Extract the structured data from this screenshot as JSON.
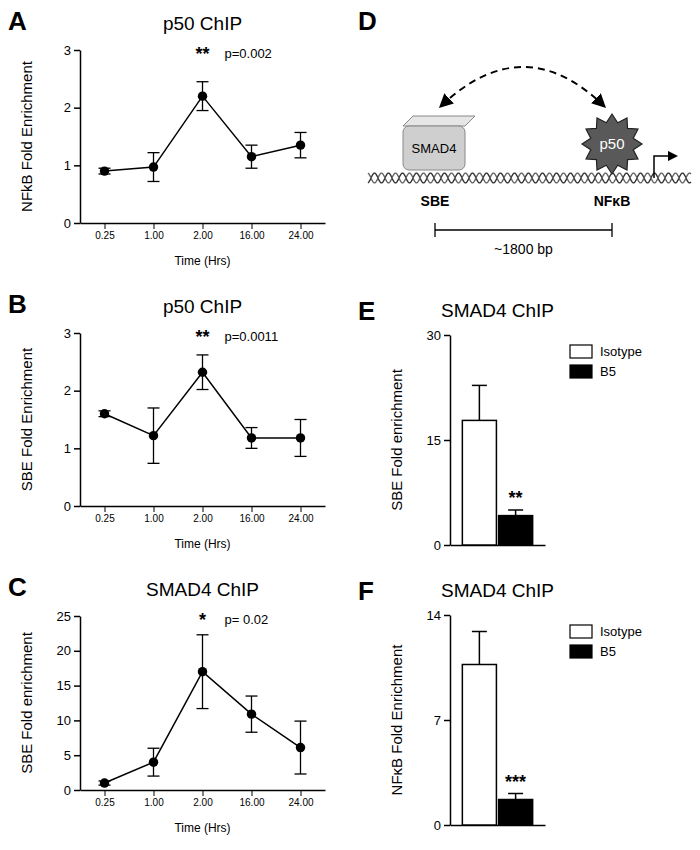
{
  "chart_data": [
    {
      "panel": "A",
      "type": "line",
      "title": "p50 ChIP",
      "y_label": "NFkB Fold Enrichment",
      "x_label": "Time (Hrs)",
      "categories": [
        "0.25",
        "1.00",
        "2.00",
        "16.00",
        "24.00"
      ],
      "values": [
        0.9,
        0.97,
        2.2,
        1.15,
        1.35
      ],
      "errors": [
        0.05,
        0.25,
        0.25,
        0.2,
        0.22
      ],
      "color": "#000000",
      "marker": "circle",
      "ylim": [
        0,
        3
      ],
      "yticks": [
        0,
        1,
        2,
        3
      ],
      "annotations": [
        "**",
        "p=0.002"
      ]
    },
    {
      "panel": "B",
      "type": "line",
      "title": "p50 ChIP",
      "y_label": "SBE Fold Enrichment",
      "x_label": "Time (Hrs)",
      "categories": [
        "0.25",
        "1.00",
        "2.00",
        "16.00",
        "24.00"
      ],
      "values": [
        1.6,
        1.22,
        2.32,
        1.18,
        1.18
      ],
      "errors": [
        0.05,
        0.48,
        0.3,
        0.18,
        0.32
      ],
      "color": "#000000",
      "marker": "circle",
      "ylim": [
        0,
        3
      ],
      "yticks": [
        0,
        1,
        2,
        3
      ],
      "annotations": [
        "**",
        "p=0.0011"
      ]
    },
    {
      "panel": "C",
      "type": "line",
      "title": "SMAD4 ChIP",
      "y_label": "SBE Fold enrichment",
      "x_label": "Time (Hrs)",
      "categories": [
        "0.25",
        "1.00",
        "2.00",
        "16.00",
        "24.00"
      ],
      "values": [
        1,
        4,
        17,
        10.9,
        6.1
      ],
      "errors": [
        0.3,
        2,
        5.3,
        2.6,
        3.8
      ],
      "color": "#000000",
      "marker": "circle",
      "ylim": [
        0,
        25
      ],
      "yticks": [
        0,
        5,
        10,
        15,
        20,
        25
      ],
      "annotations": [
        "*",
        "p= 0.02"
      ]
    },
    {
      "panel": "E",
      "type": "bar",
      "title": "SMAD4 ChIP",
      "y_label": "SBE Fold enrichment",
      "categories": [
        null
      ],
      "series": [
        {
          "name": "Isotype",
          "color": "#ffffff",
          "values": [
            17.8
          ],
          "errors": [
            5
          ]
        },
        {
          "name": "B5",
          "color": "#000000",
          "values": [
            4.2
          ],
          "errors": [
            0.8
          ]
        }
      ],
      "ylim": [
        0,
        30
      ],
      "yticks": [
        0,
        15,
        30
      ],
      "legend": "right",
      "tick_labels": "y",
      "annotations": [
        "**"
      ]
    },
    {
      "panel": "F",
      "type": "bar",
      "title": "SMAD4 ChIP",
      "y_label": "NFκB Fold Enrichment",
      "categories": [
        null
      ],
      "series": [
        {
          "name": "Isotype",
          "color": "#ffffff",
          "values": [
            10.7
          ],
          "errors": [
            2.2
          ]
        },
        {
          "name": "B5",
          "color": "#000000",
          "values": [
            1.7
          ],
          "errors": [
            0.4
          ]
        }
      ],
      "ylim": [
        0,
        14
      ],
      "yticks": [
        0,
        7,
        14
      ],
      "legend": "right",
      "tick_labels": "y",
      "annotations": [
        "***"
      ]
    }
  ],
  "diagram": {
    "panel": "D",
    "nodes": [
      {
        "label": "SMAD4",
        "site": "SBE"
      },
      {
        "label": "p50",
        "site": "NFκB"
      }
    ],
    "distance": "~1800 bp"
  }
}
